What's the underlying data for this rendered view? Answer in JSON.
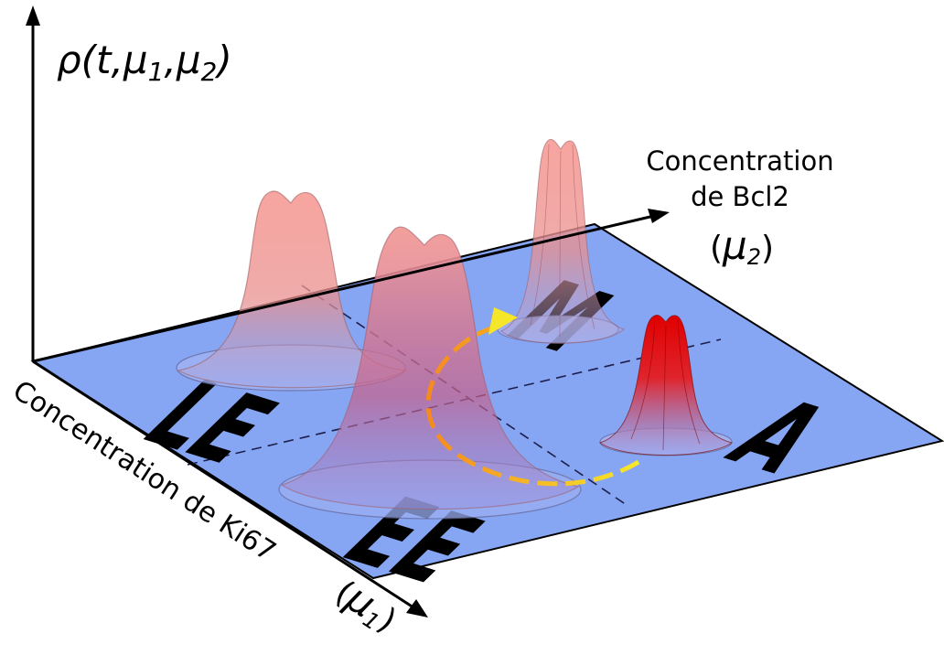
{
  "axes": {
    "vertical": {
      "rho": "ρ",
      "open": "(t,",
      "mu": "μ",
      "sub1": "1",
      "comma": ",",
      "sub2": "2",
      "close": ")"
    },
    "right": {
      "line1": "Concentration",
      "line2": "de Bcl2",
      "open": "(",
      "mu": "μ",
      "sub": "2",
      "close": ")"
    },
    "bottom": {
      "label": "Concentration de Ki67",
      "open": "(",
      "mu": "μ",
      "sub": "1",
      "close": ")"
    }
  },
  "regions": {
    "le": "LE",
    "ee": "EE",
    "m": "M",
    "a": "A"
  },
  "colors": {
    "plane": "#86a6f4",
    "peak_pink": "#f08080",
    "peak_red": "#d40000",
    "arrow_orange": "#f7a81b",
    "arrow_yellow": "#f5e629"
  }
}
